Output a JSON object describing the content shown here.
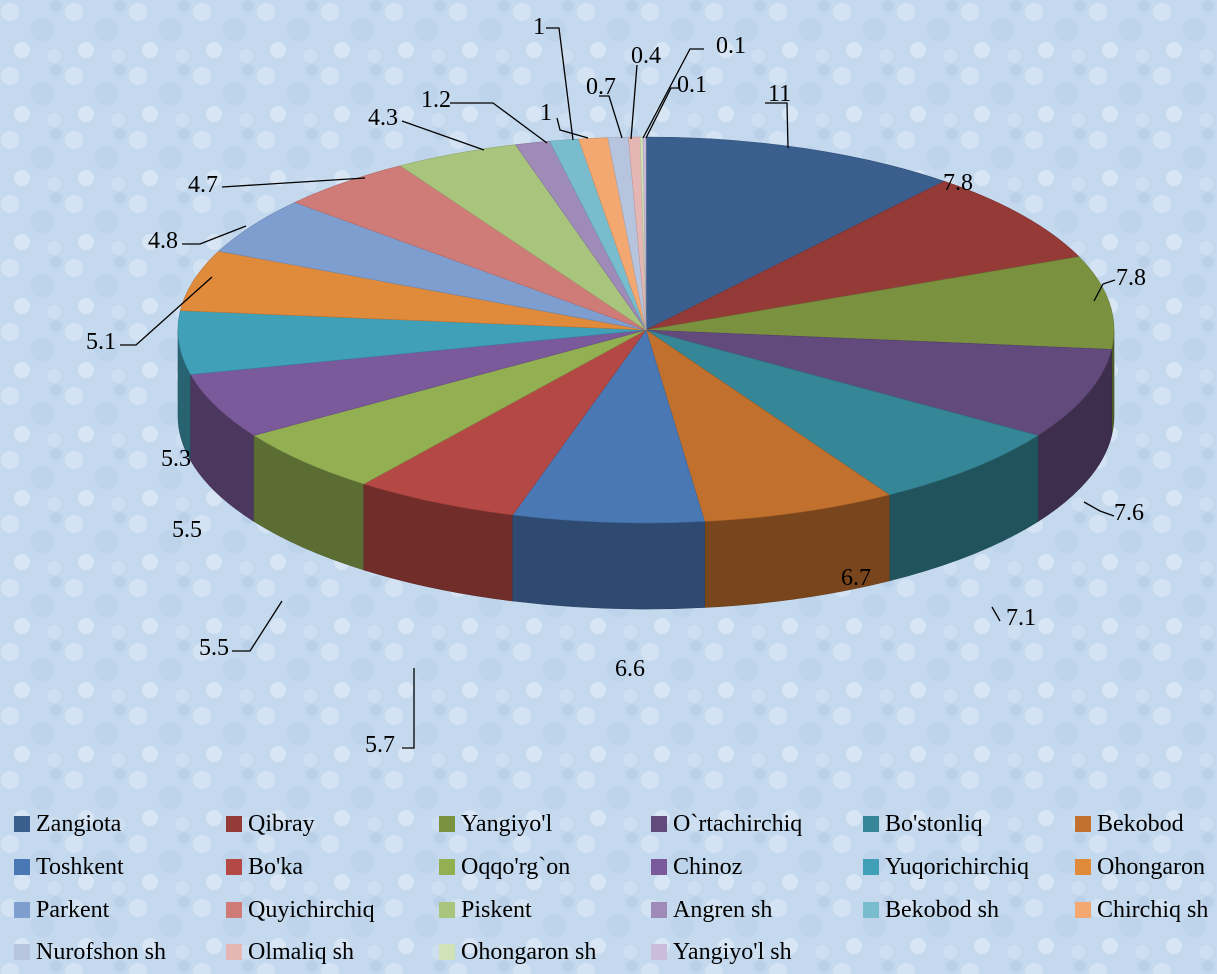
{
  "chart_data": {
    "type": "pie",
    "style": "3d-exploded-none",
    "title": "",
    "legend_position": "bottom",
    "labels": [
      "Zangiota",
      "Qibray",
      "Yangiyo'l",
      "O`rtachirchiq",
      "Bo'stonliq",
      "Bekobod",
      "Toshkent",
      "Bo'ka",
      "Oqqo'rg`on",
      "Chinoz",
      "Yuqorichirchiq",
      "Ohongaron",
      "Parkent",
      "Quyichirchiq",
      "Piskent",
      "Angren sh",
      "Bekobod sh",
      "Chirchiq sh",
      "Nurofshon sh",
      "Olmaliq sh",
      "Ohongaron sh",
      "Yangiyo'l sh"
    ],
    "values": [
      11,
      7.8,
      7.8,
      7.6,
      7.1,
      6.7,
      6.6,
      5.7,
      5.5,
      5.5,
      5.3,
      5.1,
      4.8,
      4.7,
      4.3,
      1.2,
      1,
      1,
      0.7,
      0.4,
      0.1,
      0.1
    ],
    "value_labels": [
      "11",
      "7.8",
      "7.8",
      "7.6",
      "7.1",
      "6.7",
      "6.6",
      "5.7",
      "5.5",
      "5.5",
      "5.3",
      "5.1",
      "4.8",
      "4.7",
      "4.3",
      "1.2",
      "1",
      "1",
      "0.7",
      "0.4",
      "0.1",
      "0.1"
    ],
    "colors": [
      "#3a5f8e",
      "#943a37",
      "#7a923f",
      "#624a7c",
      "#358696",
      "#c2702d",
      "#4a78b4",
      "#b44844",
      "#92b052",
      "#7a5a9a",
      "#40a0b8",
      "#e08a3c",
      "#7e9ecf",
      "#cf7b78",
      "#a9c47d",
      "#9e8bb8",
      "#79bccd",
      "#f4a871",
      "#b6c4dd",
      "#e4b6b4",
      "#d2e2b8",
      "#cbbcdc"
    ]
  }
}
